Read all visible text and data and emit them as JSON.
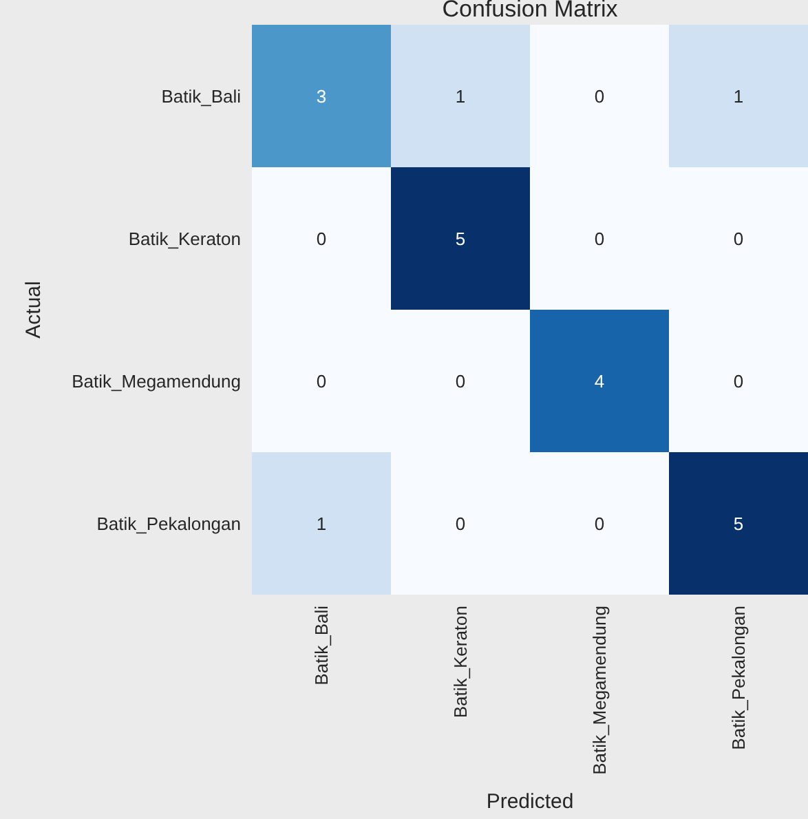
{
  "chart_data": {
    "type": "heatmap",
    "title": "Confusion Matrix",
    "xlabel": "Predicted",
    "ylabel": "Actual",
    "categories": [
      "Batik_Bali",
      "Batik_Keraton",
      "Batik_Megamendung",
      "Batik_Pekalongan"
    ],
    "y_categories": [
      "Batik_Bali",
      "Batik_Keraton",
      "Batik_Megamendung",
      "Batik_Pekalongan"
    ],
    "cells": [
      [
        3,
        1,
        0,
        1
      ],
      [
        0,
        5,
        0,
        0
      ],
      [
        0,
        0,
        4,
        0
      ],
      [
        1,
        0,
        0,
        5
      ]
    ],
    "data_labels": true
  }
}
